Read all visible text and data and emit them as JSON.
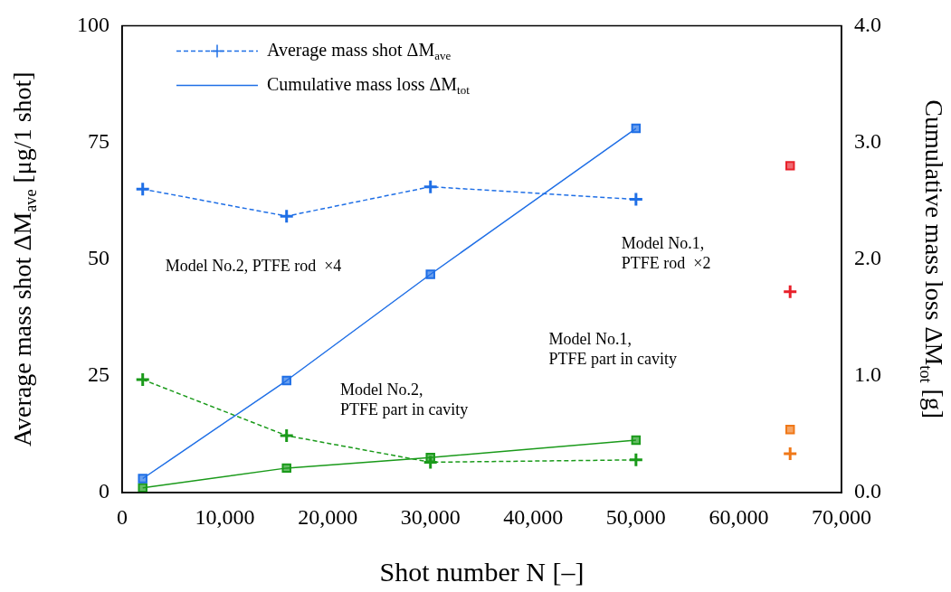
{
  "chart_data": {
    "type": "line",
    "xlabel": "Shot number N [–]",
    "ylabel": "Average mass shot ΔM$_{ave}$ [μg/1 shot]",
    "y2label": "Cumulative mass loss ΔM$_{tot}$ [g]",
    "xlim": [
      0,
      70000
    ],
    "xticks": [
      0,
      {
        "value": 10000,
        "label": "10,000"
      },
      {
        "value": 20000,
        "label": "20,000"
      },
      {
        "value": 30000,
        "label": "30,000"
      },
      {
        "value": 40000,
        "label": "40,000"
      },
      {
        "value": 50000,
        "label": "50,000"
      },
      {
        "value": 60000,
        "label": "60,000"
      },
      {
        "value": 70000,
        "label": "70,000"
      }
    ],
    "ylim": [
      0,
      100
    ],
    "yticks": [
      0,
      25,
      50,
      75,
      100
    ],
    "y2lim": [
      0,
      4
    ],
    "y2ticks": [
      {
        "value": 0,
        "label": "0.0"
      },
      {
        "value": 1,
        "label": "1.0"
      },
      {
        "value": 2,
        "label": "2.0"
      },
      {
        "value": 3,
        "label": "3.0"
      },
      {
        "value": 4,
        "label": "4.0"
      }
    ],
    "grid": false,
    "legend": "top left",
    "series": [
      {
        "name": "Average mass shot ΔM$_{ave}$",
        "color": "#1f6fe6",
        "x": [
          2000,
          16000,
          30000,
          50000
        ],
        "values": [
          65,
          59.2,
          65.5,
          62.8
        ],
        "marker": "cross",
        "line_style": "dashed"
      },
      {
        "name": "Cumulative mass loss ΔM$_{tot}$",
        "color": "#1f6fe6",
        "x": [
          2000,
          16000,
          30000,
          50000
        ],
        "values": [
          0.12,
          0.96,
          1.87,
          3.12
        ],
        "axis": "y2",
        "marker": "square",
        "line_style": "solid"
      },
      {
        "color": "#1a9a1a",
        "x": [
          2000,
          16000,
          30000,
          50000
        ],
        "values": [
          24.2,
          12.2,
          6.5,
          7.0
        ],
        "marker": "cross",
        "line_style": "dashed"
      },
      {
        "color": "#1a9a1a",
        "x": [
          2000,
          16000,
          30000,
          50000
        ],
        "values": [
          0.04,
          0.21,
          0.3,
          0.45
        ],
        "axis": "y2",
        "marker": "square",
        "line_style": "solid"
      },
      {
        "color": "#e8202a",
        "x": [
          65000
        ],
        "values": [
          43
        ],
        "marker": "cross"
      },
      {
        "color": "#e8202a",
        "x": [
          65000
        ],
        "values": [
          2.8
        ],
        "axis": "y2",
        "marker": "square"
      },
      {
        "color": "#f07818",
        "x": [
          65000
        ],
        "values": [
          8.3
        ],
        "marker": "cross"
      },
      {
        "color": "#f07818",
        "x": [
          65000
        ],
        "values": [
          0.54
        ],
        "axis": "y2",
        "marker": "square"
      }
    ],
    "annotations": [
      "Model No.2, PTFE rod  ×4",
      "Model No.1,\nPTFE rod  ×2",
      "Model No.2,\nPTFE part in cavity",
      "Model No.1,\nPTFE part in cavity"
    ]
  }
}
